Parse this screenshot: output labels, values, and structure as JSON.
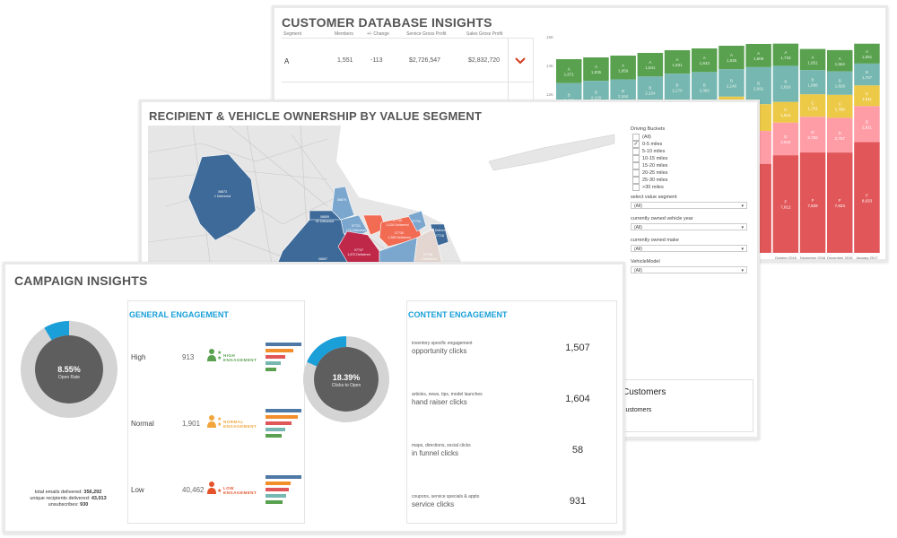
{
  "customer_db": {
    "title": "CUSTOMER DATABASE INSIGHTS",
    "columns": [
      "Segment",
      "Members",
      "+/- Change",
      "Service Gross Profit",
      "Sales Gross Profit"
    ],
    "rows": [
      {
        "segment": "A",
        "members": "1,551",
        "change": "-113",
        "service_gp": "$2,726,547",
        "sales_gp": "$2,832,720"
      }
    ],
    "expand_icon": "chevron-down-icon",
    "chevron_color": "#d23c1e"
  },
  "chart_data": {
    "type": "bar",
    "stacked": true,
    "yticks": [
      "16K",
      "14K",
      "12K"
    ],
    "categories": [
      "",
      "",
      "",
      "",
      "",
      "",
      "",
      "",
      "October 2016",
      "November 2016",
      "December 2016",
      "January 2017"
    ],
    "series": [
      {
        "name": "A",
        "color": "#59a14f",
        "values": [
          1871,
          1835,
          1859,
          1841,
          1831,
          1843,
          1835,
          1809,
          1733,
          1651,
          1664,
          1551
        ]
      },
      {
        "name": "B",
        "color": "#76b7b2",
        "values": [
          2195,
          2129,
          2164,
          2154,
          2170,
          2383,
          2140,
          2891,
          2816,
          1888,
          1829,
          1707
        ]
      },
      {
        "name": "C",
        "color": "#edc948",
        "values": [
          null,
          null,
          null,
          null,
          null,
          null,
          null,
          null,
          1614,
          1751,
          1790,
          1611
        ]
      },
      {
        "name": "D",
        "color": "#ff9da7",
        "values": [
          null,
          null,
          null,
          null,
          null,
          null,
          null,
          null,
          2544,
          2783,
          2707,
          2811
        ]
      },
      {
        "name": "F",
        "color": "#e15759",
        "values": [
          null,
          null,
          null,
          null,
          null,
          null,
          null,
          null,
          7612,
          7829,
          7823,
          8633
        ]
      }
    ]
  },
  "map_panel": {
    "title": "RECIPIENT & VEHICLE OWNERSHIP BY VALUE SEGMENT",
    "regions": [
      {
        "zip": "08873",
        "delivered": "1 Delivered"
      },
      {
        "zip": "08879",
        "delivered": ""
      },
      {
        "zip": "08859",
        "delivered": "92 Delivered"
      },
      {
        "zip": "07721",
        "delivered": "170 Delivered"
      },
      {
        "zip": "07747",
        "delivered": "1,872 Delivered"
      },
      {
        "zip": "07735",
        "delivered": "1,026 Delivered"
      },
      {
        "zip": "07730",
        "delivered": "1,289 Delivered"
      },
      {
        "zip": "07734",
        "delivered": ""
      },
      {
        "zip": "07758",
        "delivered": "718 Delivered"
      },
      {
        "zip": "07718",
        "delivered": ""
      },
      {
        "zip": "08857",
        "delivered": "18 Delivered"
      },
      {
        "zip": "07748",
        "delivered": "... Delivered"
      }
    ],
    "filters": {
      "driving_buckets_label": "Driving Buckets",
      "driving_buckets": [
        {
          "label": "(All)",
          "checked": false
        },
        {
          "label": "0-5 miles",
          "checked": true
        },
        {
          "label": "5-10 miles",
          "checked": false
        },
        {
          "label": "10-15 miles",
          "checked": false
        },
        {
          "label": "15-20 miles",
          "checked": false
        },
        {
          "label": "20-25 miles",
          "checked": false
        },
        {
          "label": "25-30 miles",
          "checked": false
        },
        {
          "label": ">30 miles",
          "checked": false
        }
      ],
      "selects": [
        {
          "label": "select value segment",
          "value": "(All)"
        },
        {
          "label": "currently owned vehicle year",
          "value": "(All)"
        },
        {
          "label": "currently owned make",
          "value": "(All)"
        },
        {
          "label": "VehicleModel",
          "value": "(All)"
        }
      ]
    },
    "customers_box": {
      "title": "Customers",
      "subtitle": "customers"
    }
  },
  "campaign": {
    "title": "CAMPAIGN INSIGHTS",
    "open_rate": {
      "value": "8.55%",
      "label": "Open Rate",
      "fraction": 0.0855
    },
    "stats": [
      {
        "label": "total emails delivered: ",
        "value": "356,292"
      },
      {
        "label": "unique recipients delivered: ",
        "value": "43,013"
      },
      {
        "label": "unsubscribes: ",
        "value": "930"
      }
    ],
    "general": {
      "title": "GENERAL ENGAGEMENT",
      "bar_colors": [
        "#4e79a7",
        "#f28e2b",
        "#e15759",
        "#76b7b2",
        "#59a14f"
      ],
      "rows": [
        {
          "label": "High",
          "value": "913",
          "badge_line1": "HIGH",
          "badge_line2": "ENGAGEMENT",
          "color": "#59a14f",
          "bars": [
            1.0,
            0.78,
            0.55,
            0.43,
            0.3
          ]
        },
        {
          "label": "Normal",
          "value": "1,901",
          "badge_line1": "NORMAL",
          "badge_line2": "ENGAGEMENT",
          "color": "#f2a53a",
          "bars": [
            1.0,
            0.9,
            0.72,
            0.55,
            0.45
          ]
        },
        {
          "label": "Low",
          "value": "40,462",
          "badge_line1": "LOW",
          "badge_line2": "ENGAGEMENT",
          "color": "#e4532a",
          "bars": [
            1.0,
            0.7,
            0.65,
            0.57,
            0.48
          ]
        }
      ]
    },
    "clicks_to_open": {
      "value": "18.39%",
      "label": "Clicks to Open",
      "fraction": 0.1839
    },
    "content": {
      "title": "CONTENT ENGAGEMENT",
      "rows": [
        {
          "sub": "inventory specific engagement",
          "main": "opportunity clicks",
          "value": "1,507"
        },
        {
          "sub": "articles, news, tips, model launches",
          "main": "hand raiser clicks",
          "value": "1,604"
        },
        {
          "sub": "maps, directions, social clicks",
          "main": "in funnel clicks",
          "value": "58"
        },
        {
          "sub": "coupons, service specials & appts",
          "main": "service clicks",
          "value": "931"
        }
      ]
    },
    "accent": "#1a9fd9",
    "donut_bg": "#d4d4d4",
    "donut_center": "#5e5e5e"
  }
}
